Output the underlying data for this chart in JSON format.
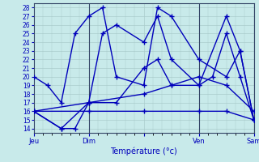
{
  "title": "",
  "xlabel": "Température (°c)",
  "ylabel": "",
  "xlim": [
    0,
    96
  ],
  "ylim": [
    13.5,
    28.5
  ],
  "yticks": [
    14,
    15,
    16,
    17,
    18,
    19,
    20,
    21,
    22,
    23,
    24,
    25,
    26,
    27,
    28
  ],
  "xtick_positions": [
    0,
    24,
    48,
    72,
    96
  ],
  "xtick_labels": [
    "Jeu",
    "Dim",
    "",
    "Ven",
    "Sam"
  ],
  "background_color": "#c8eaea",
  "grid_color": "#aacccc",
  "line_color": "#0000bb",
  "lines": [
    {
      "x": [
        0,
        6,
        12,
        18,
        24,
        30,
        36,
        48,
        54,
        60,
        72,
        84,
        90,
        96
      ],
      "y": [
        20,
        19,
        17,
        25,
        27,
        28,
        20,
        19,
        28,
        27,
        22,
        20,
        23,
        15
      ],
      "marker": "+"
    },
    {
      "x": [
        0,
        12,
        24,
        36,
        48,
        54,
        60,
        72,
        78,
        84,
        90,
        96
      ],
      "y": [
        16,
        14,
        17,
        17,
        21,
        22,
        19,
        19,
        20,
        25,
        20,
        15
      ],
      "marker": "+"
    },
    {
      "x": [
        0,
        24,
        48,
        60,
        72,
        84,
        96
      ],
      "y": [
        16,
        17,
        18,
        19,
        20,
        19,
        16
      ],
      "marker": "+"
    },
    {
      "x": [
        0,
        24,
        48,
        72,
        84,
        96
      ],
      "y": [
        16,
        16,
        16,
        16,
        16,
        15
      ],
      "marker": "+"
    },
    {
      "x": [
        0,
        12,
        18,
        24,
        30,
        36,
        48,
        54,
        60,
        72,
        84,
        90,
        96
      ],
      "y": [
        16,
        14,
        14,
        17,
        25,
        26,
        24,
        27,
        22,
        19,
        27,
        23,
        15
      ],
      "marker": "+"
    }
  ],
  "vline_positions": [
    24,
    72,
    96
  ],
  "vline_color": "#666688"
}
